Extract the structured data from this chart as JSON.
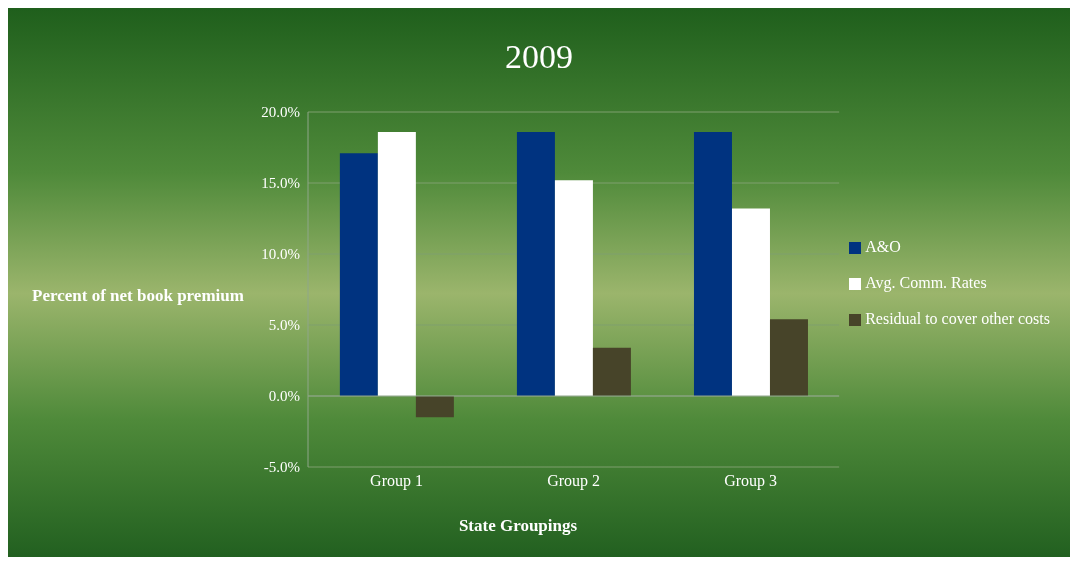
{
  "chart_data": {
    "type": "bar",
    "title": "2009",
    "xlabel": "State Groupings",
    "ylabel": "Percent of net book premium",
    "categories": [
      "Group 1",
      "Group 2",
      "Group 3"
    ],
    "series": [
      {
        "name": "A&O",
        "color": "#003380",
        "values": [
          17.1,
          18.6,
          18.6
        ]
      },
      {
        "name": "Avg. Comm. Rates",
        "color": "#ffffff",
        "values": [
          18.6,
          15.2,
          13.2
        ]
      },
      {
        "name": "Residual to cover other costs",
        "color": "#474429",
        "values": [
          -1.5,
          3.4,
          5.4
        ]
      }
    ],
    "ylim": [
      -5,
      20
    ],
    "yticks": [
      {
        "value": -5,
        "label": "-5.0%"
      },
      {
        "value": 0,
        "label": "0.0%"
      },
      {
        "value": 5,
        "label": "5.0%"
      },
      {
        "value": 10,
        "label": "10.0%"
      },
      {
        "value": 15,
        "label": "15.0%"
      },
      {
        "value": 20,
        "label": "20.0%"
      }
    ],
    "grid": "y",
    "legend": "right"
  }
}
